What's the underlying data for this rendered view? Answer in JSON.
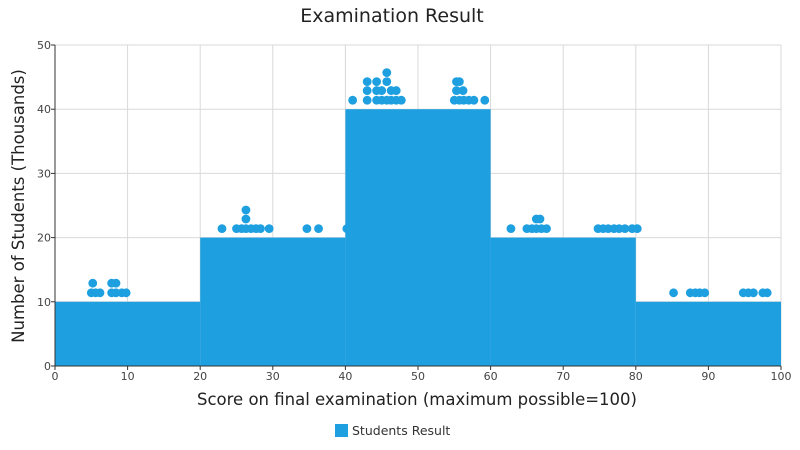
{
  "chart_data": {
    "type": "histogram",
    "title": "Examination Result",
    "xlabel": "Score on final examination (maximum possible=100)",
    "ylabel": "Number of Students (Thousands)",
    "xlim": [
      0,
      100
    ],
    "ylim": [
      0,
      50
    ],
    "x_ticks": [
      0,
      10,
      20,
      30,
      40,
      50,
      60,
      70,
      80,
      90,
      100
    ],
    "y_ticks": [
      0,
      10,
      20,
      30,
      40,
      50
    ],
    "grid": true,
    "legend_position": "bottom-center",
    "color": "#1e9fe0",
    "series": [
      {
        "name": "Students Result",
        "bins": [
          {
            "from": 0,
            "to": 20,
            "value": 10
          },
          {
            "from": 20,
            "to": 40,
            "value": 20
          },
          {
            "from": 40,
            "to": 60,
            "value": 40
          },
          {
            "from": 60,
            "to": 80,
            "value": 20
          },
          {
            "from": 80,
            "to": 100,
            "value": 10
          }
        ],
        "points": [
          {
            "x": 5,
            "y": 11.4
          },
          {
            "x": 5.6,
            "y": 11.4
          },
          {
            "x": 6.2,
            "y": 11.4
          },
          {
            "x": 5.2,
            "y": 12.9
          },
          {
            "x": 7.8,
            "y": 11.4
          },
          {
            "x": 8.4,
            "y": 11.4
          },
          {
            "x": 9.2,
            "y": 11.4
          },
          {
            "x": 9.8,
            "y": 11.4
          },
          {
            "x": 7.8,
            "y": 12.9
          },
          {
            "x": 8.4,
            "y": 12.9
          },
          {
            "x": 23,
            "y": 21.4
          },
          {
            "x": 25,
            "y": 21.4
          },
          {
            "x": 25.7,
            "y": 21.4
          },
          {
            "x": 26.3,
            "y": 21.4
          },
          {
            "x": 27,
            "y": 21.4
          },
          {
            "x": 27.7,
            "y": 21.4
          },
          {
            "x": 28.3,
            "y": 21.4
          },
          {
            "x": 29.5,
            "y": 21.4
          },
          {
            "x": 26.3,
            "y": 22.9
          },
          {
            "x": 26.3,
            "y": 24.3
          },
          {
            "x": 34.7,
            "y": 21.4
          },
          {
            "x": 36.3,
            "y": 21.4
          },
          {
            "x": 40.2,
            "y": 21.4
          },
          {
            "x": 41,
            "y": 41.4
          },
          {
            "x": 43,
            "y": 41.4
          },
          {
            "x": 44.3,
            "y": 41.4
          },
          {
            "x": 45,
            "y": 41.4
          },
          {
            "x": 45.7,
            "y": 41.4
          },
          {
            "x": 46.3,
            "y": 41.4
          },
          {
            "x": 47,
            "y": 41.4
          },
          {
            "x": 47.7,
            "y": 41.4
          },
          {
            "x": 43,
            "y": 42.9
          },
          {
            "x": 44.3,
            "y": 42.9
          },
          {
            "x": 45,
            "y": 42.9
          },
          {
            "x": 46.3,
            "y": 42.9
          },
          {
            "x": 47,
            "y": 42.9
          },
          {
            "x": 43,
            "y": 44.3
          },
          {
            "x": 44.3,
            "y": 44.3
          },
          {
            "x": 45.7,
            "y": 44.3
          },
          {
            "x": 45.7,
            "y": 45.7
          },
          {
            "x": 55,
            "y": 41.4
          },
          {
            "x": 55.7,
            "y": 41.4
          },
          {
            "x": 56.3,
            "y": 41.4
          },
          {
            "x": 57,
            "y": 41.4
          },
          {
            "x": 57.7,
            "y": 41.4
          },
          {
            "x": 59.2,
            "y": 41.4
          },
          {
            "x": 55.3,
            "y": 42.9
          },
          {
            "x": 56.2,
            "y": 42.9
          },
          {
            "x": 55.3,
            "y": 44.3
          },
          {
            "x": 55.7,
            "y": 44.3
          },
          {
            "x": 62.8,
            "y": 21.4
          },
          {
            "x": 65,
            "y": 21.4
          },
          {
            "x": 65.7,
            "y": 21.4
          },
          {
            "x": 66.3,
            "y": 21.4
          },
          {
            "x": 67,
            "y": 21.4
          },
          {
            "x": 67.7,
            "y": 21.4
          },
          {
            "x": 66.3,
            "y": 22.9
          },
          {
            "x": 66.8,
            "y": 22.9
          },
          {
            "x": 74.8,
            "y": 21.4
          },
          {
            "x": 75.5,
            "y": 21.4
          },
          {
            "x": 76.2,
            "y": 21.4
          },
          {
            "x": 77,
            "y": 21.4
          },
          {
            "x": 77.7,
            "y": 21.4
          },
          {
            "x": 78.5,
            "y": 21.4
          },
          {
            "x": 79.5,
            "y": 21.4
          },
          {
            "x": 80.2,
            "y": 21.4
          },
          {
            "x": 85.2,
            "y": 11.4
          },
          {
            "x": 87.5,
            "y": 11.4
          },
          {
            "x": 88.2,
            "y": 11.4
          },
          {
            "x": 88.8,
            "y": 11.4
          },
          {
            "x": 89.5,
            "y": 11.4
          },
          {
            "x": 94.8,
            "y": 11.4
          },
          {
            "x": 95.5,
            "y": 11.4
          },
          {
            "x": 96.2,
            "y": 11.4
          },
          {
            "x": 97.5,
            "y": 11.4
          },
          {
            "x": 98.1,
            "y": 11.4
          }
        ]
      }
    ]
  }
}
